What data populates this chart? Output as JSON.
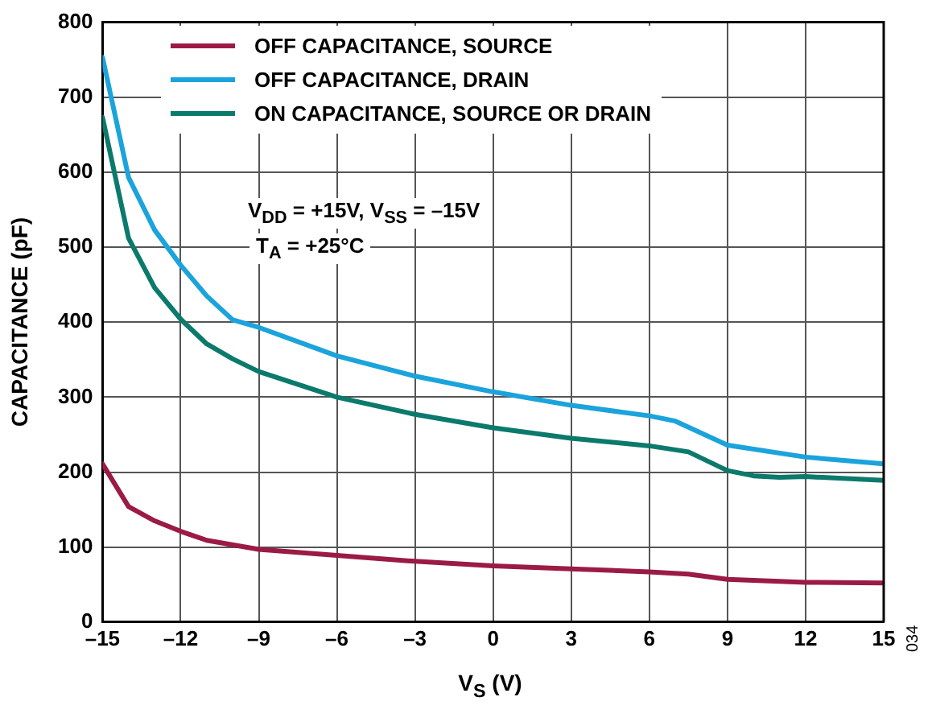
{
  "chart_data": {
    "type": "line",
    "xlabel": "V$_{S}$ (V)",
    "ylabel": "CAPACITANCE (pF)",
    "xlim": [
      -15,
      15
    ],
    "xticks": [
      {
        "value": -15,
        "label": "–15"
      },
      {
        "value": -12,
        "label": "–12"
      },
      {
        "value": -9,
        "label": "–9"
      },
      {
        "value": -6,
        "label": "–6"
      },
      {
        "value": -3,
        "label": "–3"
      },
      0,
      3,
      6,
      9,
      12,
      15
    ],
    "ylim": [
      0,
      800
    ],
    "yticks": [
      0,
      100,
      200,
      300,
      400,
      500,
      600,
      700,
      800
    ],
    "grid": true,
    "legend": "top left",
    "marker": "none",
    "line_style": "solid",
    "annotations": [
      "V$_{DD}$ = +15V, V$_{SS}$ = –15V",
      "T$_{A}$ = +25°C",
      "034"
    ],
    "series": [
      {
        "name": "OFF CAPACITANCE, SOURCE",
        "color": "#9b1b45",
        "x": [
          -15,
          -14,
          -13,
          -12,
          -11,
          -9,
          -6,
          -3,
          0,
          3,
          6,
          7.5,
          9,
          12,
          15
        ],
        "values": [
          211,
          154,
          135,
          121,
          109,
          97,
          89,
          81,
          75,
          71,
          67,
          64,
          57,
          53,
          52
        ]
      },
      {
        "name": "OFF CAPACITANCE, DRAIN",
        "color": "#1ba3dc",
        "x": [
          -15,
          -14,
          -13,
          -12,
          -11,
          -10,
          -9,
          -6,
          -3,
          0,
          3,
          6,
          7,
          9,
          12,
          15
        ],
        "values": [
          753,
          593,
          523,
          476,
          435,
          403,
          393,
          355,
          328,
          307,
          289,
          275,
          268,
          236,
          220,
          211
        ]
      },
      {
        "name": "ON CAPACITANCE, SOURCE OR DRAIN",
        "color": "#0b7a6c",
        "x": [
          -15,
          -14,
          -13,
          -12,
          -11,
          -10,
          -9,
          -6,
          -3,
          0,
          3,
          6,
          7.5,
          9,
          10,
          11,
          12,
          15
        ],
        "values": [
          673,
          512,
          446,
          404,
          371,
          351,
          334,
          300,
          277,
          259,
          245,
          235,
          227,
          202,
          195,
          193,
          194,
          189
        ]
      }
    ]
  }
}
